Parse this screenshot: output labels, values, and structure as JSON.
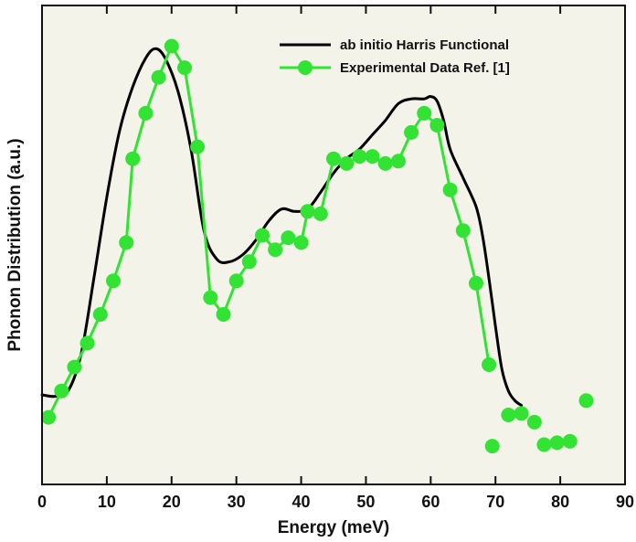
{
  "chart_data": {
    "type": "line",
    "title": "",
    "xlabel": "Energy (meV)",
    "ylabel": "Phonon Distribution (a.u.)",
    "xlim": [
      0,
      90
    ],
    "ylim": [
      0,
      1
    ],
    "xticks": [
      0,
      10,
      20,
      30,
      40,
      50,
      60,
      70,
      80,
      90
    ],
    "y_tick_labels_shown": false,
    "grid": false,
    "legend_position": "top-right",
    "series": [
      {
        "name": "ab initio Harris Functional",
        "color": "#000000",
        "style": "line",
        "x": [
          0,
          2,
          4,
          6,
          8,
          10,
          12,
          14,
          16,
          17.5,
          19,
          21,
          23,
          25,
          27,
          29,
          31,
          33,
          35,
          37,
          39,
          41,
          43,
          45,
          47,
          49,
          51,
          53,
          55,
          57,
          59,
          60,
          61,
          62,
          63,
          65,
          67,
          68,
          69,
          70,
          71,
          72,
          73,
          74
        ],
        "y": [
          0.187,
          0.184,
          0.195,
          0.27,
          0.43,
          0.6,
          0.74,
          0.83,
          0.89,
          0.91,
          0.89,
          0.82,
          0.7,
          0.53,
          0.47,
          0.465,
          0.48,
          0.51,
          0.55,
          0.575,
          0.57,
          0.575,
          0.61,
          0.65,
          0.68,
          0.7,
          0.73,
          0.76,
          0.795,
          0.805,
          0.805,
          0.81,
          0.8,
          0.76,
          0.7,
          0.64,
          0.58,
          0.52,
          0.43,
          0.33,
          0.24,
          0.195,
          0.175,
          0.165
        ]
      },
      {
        "name": "Experimental Data Ref. [1]",
        "color": "#33e333",
        "style": "line+markers",
        "x": [
          1,
          3,
          5,
          7,
          9,
          11,
          13,
          14,
          16,
          18,
          20,
          22,
          24,
          26,
          28,
          30,
          32,
          34,
          36,
          38,
          40,
          41,
          43,
          45,
          47,
          49,
          51,
          53,
          55,
          57,
          59,
          61,
          63,
          65,
          67,
          69
        ],
        "y": [
          0.14,
          0.195,
          0.245,
          0.295,
          0.355,
          0.425,
          0.505,
          0.68,
          0.775,
          0.85,
          0.915,
          0.87,
          0.705,
          0.39,
          0.355,
          0.425,
          0.465,
          0.52,
          0.49,
          0.515,
          0.505,
          0.57,
          0.565,
          0.68,
          0.67,
          0.685,
          0.685,
          0.67,
          0.675,
          0.735,
          0.775,
          0.75,
          0.615,
          0.53,
          0.42,
          0.25
        ]
      }
    ],
    "unconnected_points": [
      {
        "x": 69.5,
        "y": 0.08
      },
      {
        "x": 72,
        "y": 0.145
      },
      {
        "x": 74,
        "y": 0.148
      },
      {
        "x": 76,
        "y": 0.13
      },
      {
        "x": 77.5,
        "y": 0.083
      },
      {
        "x": 79.5,
        "y": 0.087
      },
      {
        "x": 81.5,
        "y": 0.09
      },
      {
        "x": 84,
        "y": 0.175
      }
    ]
  }
}
